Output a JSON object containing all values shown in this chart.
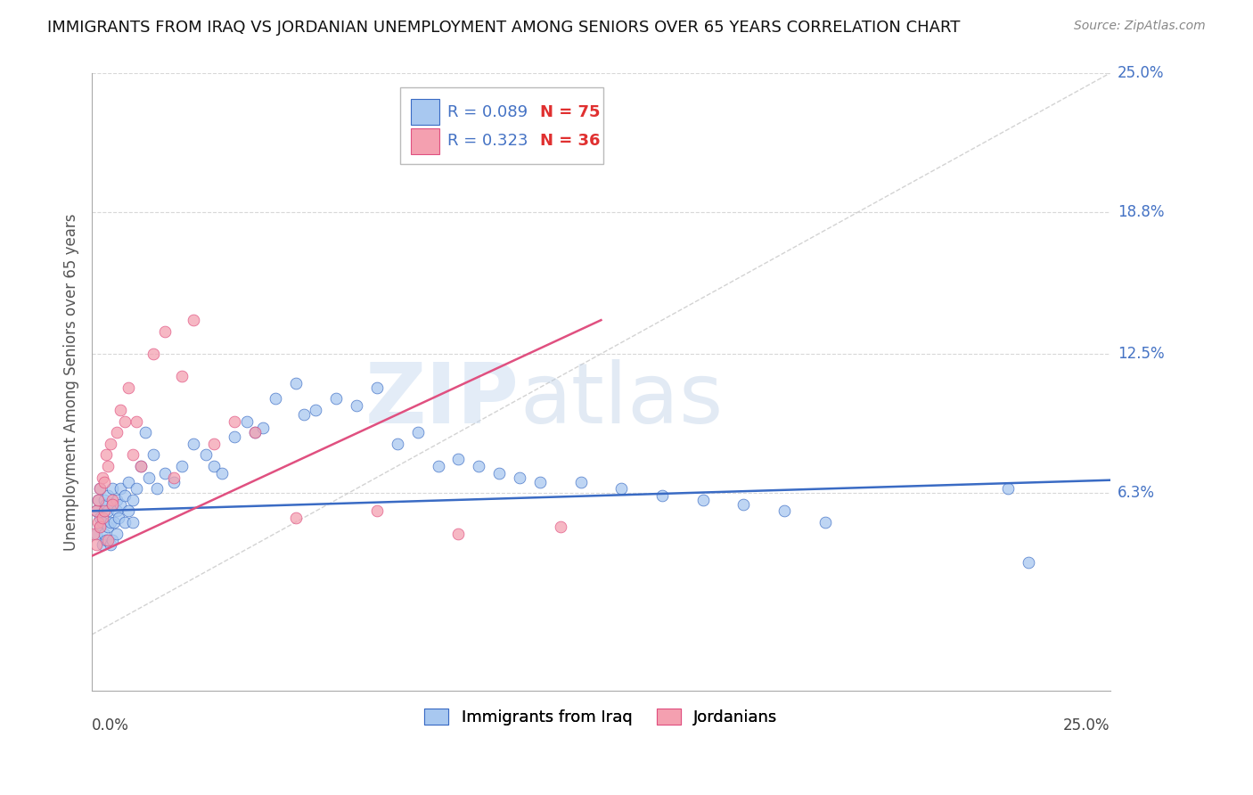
{
  "title": "IMMIGRANTS FROM IRAQ VS JORDANIAN UNEMPLOYMENT AMONG SENIORS OVER 65 YEARS CORRELATION CHART",
  "source": "Source: ZipAtlas.com",
  "xlabel_bottom_left": "0.0%",
  "xlabel_bottom_right": "25.0%",
  "ylabel_label": "Unemployment Among Seniors over 65 years",
  "ytick_labels": [
    "6.3%",
    "12.5%",
    "18.8%",
    "25.0%"
  ],
  "ytick_values": [
    6.3,
    12.5,
    18.8,
    25.0
  ],
  "xmin": 0.0,
  "xmax": 25.0,
  "ymin": -2.5,
  "ymax": 25.0,
  "legend_r1": "R = 0.089",
  "legend_n1": "N = 75",
  "legend_r2": "R = 0.323",
  "legend_n2": "N = 36",
  "color_blue": "#a8c8f0",
  "color_pink": "#f4a0b0",
  "color_blue_line": "#3a6bc4",
  "color_pink_line": "#e05080",
  "color_diag": "#c8c8c8",
  "color_axis_label": "#4472c4",
  "watermark_zip": "ZIP",
  "watermark_atlas": "atlas",
  "blue_scatter_x": [
    0.1,
    0.1,
    0.15,
    0.2,
    0.2,
    0.2,
    0.25,
    0.25,
    0.3,
    0.3,
    0.3,
    0.35,
    0.35,
    0.4,
    0.4,
    0.4,
    0.45,
    0.45,
    0.5,
    0.5,
    0.5,
    0.55,
    0.6,
    0.6,
    0.6,
    0.65,
    0.7,
    0.7,
    0.8,
    0.8,
    0.9,
    0.9,
    1.0,
    1.0,
    1.1,
    1.2,
    1.3,
    1.4,
    1.5,
    1.6,
    1.8,
    2.0,
    2.2,
    2.5,
    2.8,
    3.0,
    3.2,
    3.5,
    3.8,
    4.0,
    4.2,
    4.5,
    5.0,
    5.2,
    5.5,
    6.0,
    6.5,
    7.0,
    7.5,
    8.0,
    8.5,
    9.0,
    9.5,
    10.0,
    10.5,
    11.0,
    12.0,
    13.0,
    14.0,
    15.0,
    16.0,
    17.0,
    18.0,
    22.5,
    23.0
  ],
  "blue_scatter_y": [
    5.5,
    4.5,
    6.0,
    4.8,
    5.2,
    6.5,
    5.0,
    4.0,
    5.5,
    6.0,
    4.5,
    5.8,
    4.2,
    5.5,
    6.2,
    4.8,
    5.0,
    4.0,
    5.8,
    6.5,
    4.2,
    5.0,
    5.5,
    6.0,
    4.5,
    5.2,
    5.8,
    6.5,
    5.0,
    6.2,
    5.5,
    6.8,
    6.0,
    5.0,
    6.5,
    7.5,
    9.0,
    7.0,
    8.0,
    6.5,
    7.2,
    6.8,
    7.5,
    8.5,
    8.0,
    7.5,
    7.2,
    8.8,
    9.5,
    9.0,
    9.2,
    10.5,
    11.2,
    9.8,
    10.0,
    10.5,
    10.2,
    11.0,
    8.5,
    9.0,
    7.5,
    7.8,
    7.5,
    7.2,
    7.0,
    6.8,
    6.8,
    6.5,
    6.2,
    6.0,
    5.8,
    5.5,
    5.0,
    6.5,
    3.2
  ],
  "pink_scatter_x": [
    0.05,
    0.1,
    0.1,
    0.15,
    0.15,
    0.2,
    0.2,
    0.25,
    0.25,
    0.3,
    0.3,
    0.35,
    0.4,
    0.4,
    0.45,
    0.5,
    0.5,
    0.6,
    0.7,
    0.8,
    0.9,
    1.0,
    1.1,
    1.2,
    1.5,
    1.8,
    2.0,
    2.2,
    2.5,
    3.0,
    3.5,
    4.0,
    5.0,
    7.0,
    9.0,
    11.5
  ],
  "pink_scatter_y": [
    4.5,
    5.5,
    4.0,
    6.0,
    5.0,
    4.8,
    6.5,
    5.2,
    7.0,
    6.8,
    5.5,
    8.0,
    4.2,
    7.5,
    8.5,
    6.0,
    5.8,
    9.0,
    10.0,
    9.5,
    11.0,
    8.0,
    9.5,
    7.5,
    12.5,
    13.5,
    7.0,
    11.5,
    14.0,
    8.5,
    9.5,
    9.0,
    5.2,
    5.5,
    4.5,
    4.8
  ],
  "blue_line_x": [
    0.0,
    25.0
  ],
  "blue_line_y_intercept": 5.5,
  "blue_line_slope": 0.055,
  "pink_line_x": [
    0.0,
    12.5
  ],
  "pink_line_y_intercept": 3.5,
  "pink_line_slope": 0.84
}
